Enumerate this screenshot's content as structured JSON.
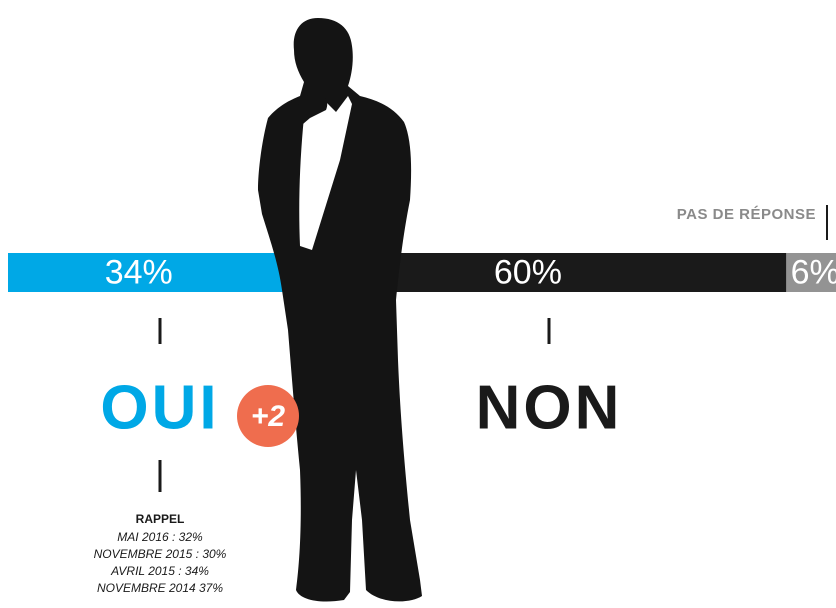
{
  "chart_data": {
    "type": "stacked-bar",
    "series": [
      {
        "name": "OUI",
        "color": "#00a8e6",
        "values": [
          34
        ],
        "value_labels": [
          "34%"
        ]
      },
      {
        "name": "NON",
        "color": "#1a1a1a",
        "values": [
          60
        ],
        "value_labels": [
          "60%"
        ]
      },
      {
        "name": "PAS DE RÉPONSE",
        "color": "#939393",
        "values": [
          6
        ],
        "value_labels": [
          "6%"
        ]
      }
    ],
    "annotations": [
      {
        "text": "+2"
      }
    ],
    "recall": {
      "title": "RAPPEL",
      "lines": [
        "MAI 2016 : 32%",
        "NOVEMBRE 2015 : 30%",
        "AVRIL 2015 : 34%",
        "NOVEMBRE 2014  37%"
      ]
    }
  }
}
